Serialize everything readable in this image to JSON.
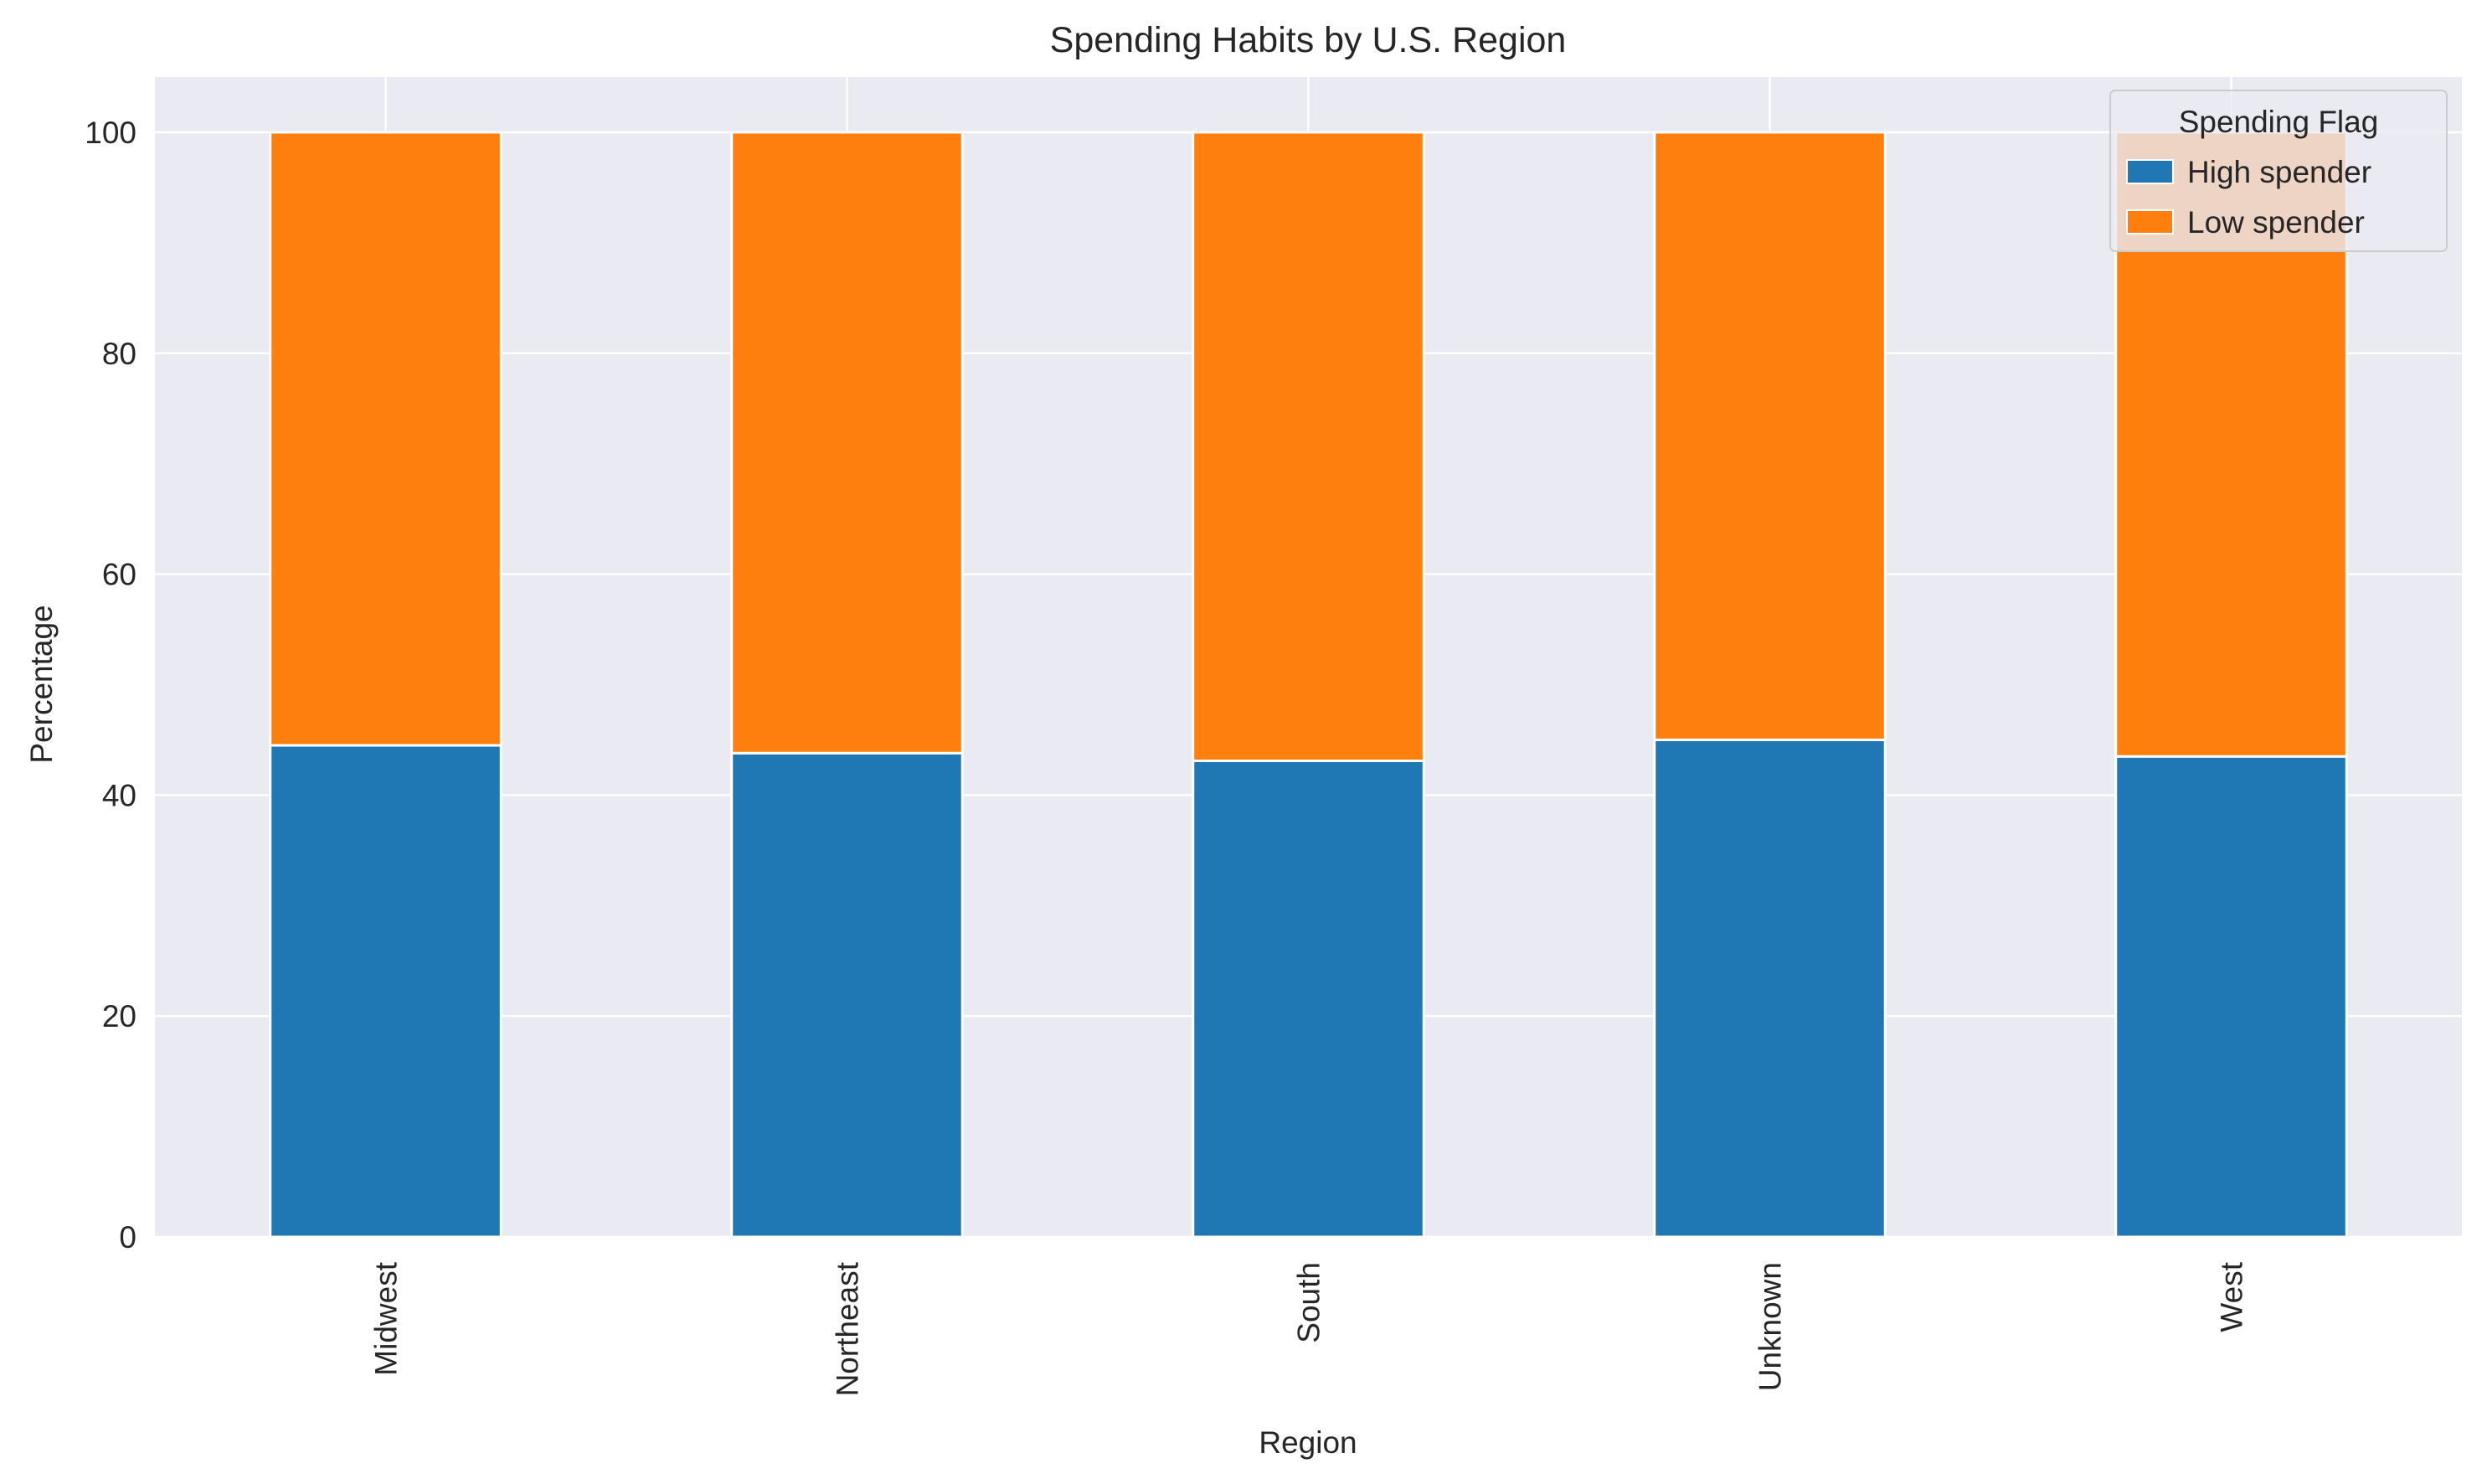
{
  "chart_data": {
    "type": "bar",
    "stacked": true,
    "title": "Spending Habits by U.S. Region",
    "xlabel": "Region",
    "ylabel": "Percentage",
    "categories": [
      "Midwest",
      "Northeast",
      "South",
      "Unknown",
      "West"
    ],
    "series": [
      {
        "name": "High spender",
        "color": "#1f77b4",
        "values": [
          44.5,
          43.8,
          43.1,
          45.0,
          43.5
        ]
      },
      {
        "name": "Low spender",
        "color": "#ff7f0e",
        "values": [
          55.5,
          56.2,
          56.9,
          55.0,
          56.5
        ]
      }
    ],
    "ylim": [
      0,
      105
    ],
    "yticks": [
      0,
      20,
      40,
      60,
      80,
      100
    ],
    "legend": {
      "title": "Spending Flag",
      "position": "top-right"
    },
    "grid": true,
    "background": "#eaeaf2"
  }
}
